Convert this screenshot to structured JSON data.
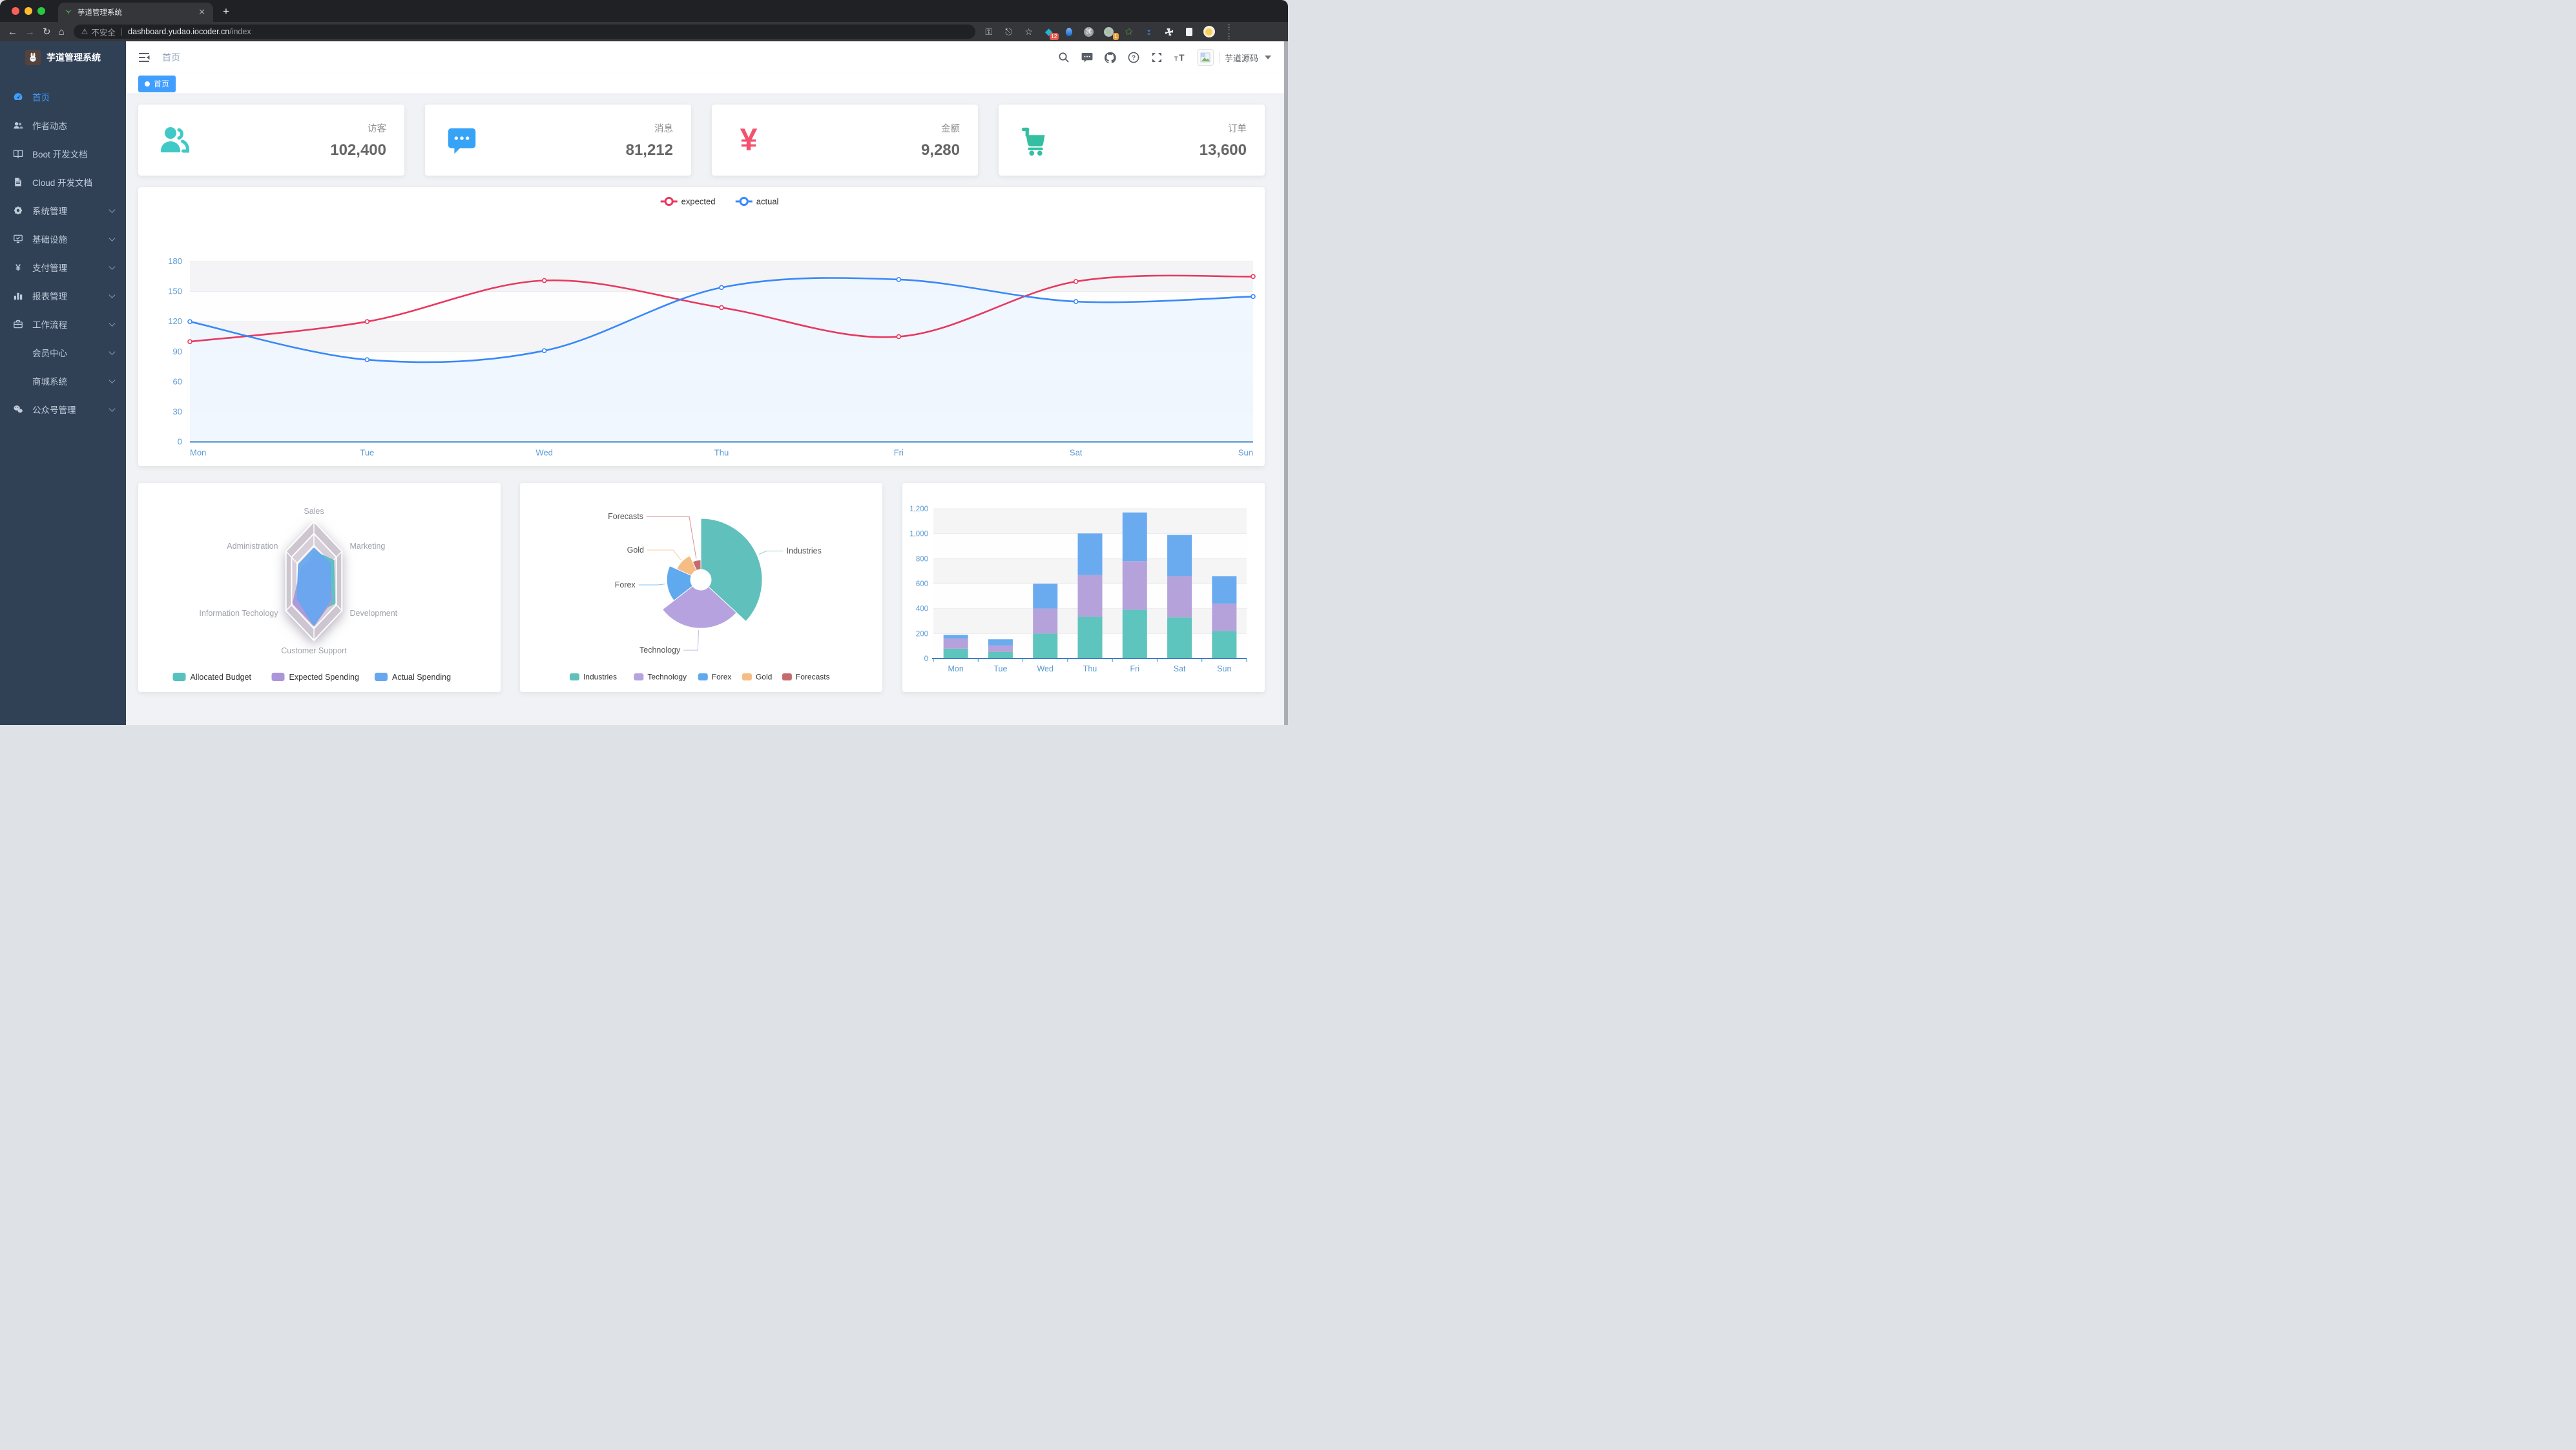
{
  "browser": {
    "tab": {
      "title": "芋道管理系统",
      "close_glyph": "✕",
      "new_tab_glyph": "+"
    },
    "address": {
      "warning_glyph": "⚠",
      "security_label": "不安全",
      "domain": "dashboard.yudao.iocoder.cn",
      "path": "/index"
    },
    "extension_badges": {
      "first": "12",
      "second": "1"
    }
  },
  "sidebar": {
    "logo_title": "芋道管理系统",
    "items": [
      {
        "label": "首页",
        "icon": "dashboard-icon",
        "active": true,
        "children": false,
        "sub": false
      },
      {
        "label": "作者动态",
        "icon": "people-icon",
        "active": false,
        "children": false,
        "sub": false
      },
      {
        "label": "Boot 开发文档",
        "icon": "book-icon",
        "active": false,
        "children": false,
        "sub": false
      },
      {
        "label": "Cloud 开发文档",
        "icon": "document-icon",
        "active": false,
        "children": false,
        "sub": false
      },
      {
        "label": "系统管理",
        "icon": "gear-icon",
        "active": false,
        "children": true,
        "sub": false
      },
      {
        "label": "基础设施",
        "icon": "monitor-icon",
        "active": false,
        "children": true,
        "sub": false
      },
      {
        "label": "支付管理",
        "icon": "yen-icon",
        "active": false,
        "children": true,
        "sub": false
      },
      {
        "label": "报表管理",
        "icon": "barchart-icon",
        "active": false,
        "children": true,
        "sub": false
      },
      {
        "label": "工作流程",
        "icon": "briefcase-icon",
        "active": false,
        "children": true,
        "sub": false
      },
      {
        "label": "会员中心",
        "icon": null,
        "active": false,
        "children": true,
        "sub": true
      },
      {
        "label": "商城系统",
        "icon": null,
        "active": false,
        "children": true,
        "sub": true
      },
      {
        "label": "公众号管理",
        "icon": "wechat-icon",
        "active": false,
        "children": true,
        "sub": false
      }
    ]
  },
  "topbar": {
    "breadcrumb": "首页",
    "username": "芋道源码"
  },
  "tags": [
    {
      "label": "首页",
      "active": true
    }
  ],
  "stat_cards": [
    {
      "label": "访客",
      "value": "102,400",
      "icon": "peoples-icon",
      "color": "#40c9c6"
    },
    {
      "label": "消息",
      "value": "81,212",
      "icon": "message-icon",
      "color": "#36a3f7"
    },
    {
      "label": "金额",
      "value": "9,280",
      "icon": "money-icon",
      "color": "#f4516c"
    },
    {
      "label": "订单",
      "value": "13,600",
      "icon": "cart-icon",
      "color": "#34bfa3"
    }
  ],
  "chart_data": [
    {
      "type": "line",
      "title": "weekly expected vs actual",
      "categories": [
        "Mon",
        "Tue",
        "Wed",
        "Thu",
        "Fri",
        "Sat",
        "Sun"
      ],
      "series": [
        {
          "name": "expected",
          "color": "#e8385f",
          "values": [
            100,
            120,
            161,
            134,
            105,
            160,
            165
          ]
        },
        {
          "name": "actual",
          "color": "#3888fa",
          "area_color": "#f0f6fe",
          "values": [
            120,
            82,
            91,
            154,
            162,
            140,
            145
          ]
        }
      ],
      "ylim": [
        0,
        180
      ],
      "ystep": 30,
      "grid": true,
      "legend_position": "top"
    },
    {
      "type": "radar",
      "indicators": [
        {
          "name": "Sales",
          "max": 10000
        },
        {
          "name": "Marketing",
          "max": 20000
        },
        {
          "name": "Development",
          "max": 20000
        },
        {
          "name": "Customer Support",
          "max": 20000
        },
        {
          "name": "Information Techology",
          "max": 20000
        },
        {
          "name": "Administration",
          "max": 20000
        }
      ],
      "series": [
        {
          "name": "Allocated Budget",
          "color": "#57c1bd",
          "values": [
            5000,
            14000,
            15000,
            11000,
            12000,
            7000
          ]
        },
        {
          "name": "Expected Spending",
          "color": "#ab96d9",
          "values": [
            4000,
            11000,
            13000,
            15000,
            15000,
            9000
          ]
        },
        {
          "name": "Actual Spending",
          "color": "#67a7ef",
          "values": [
            5500,
            12000,
            12000,
            15000,
            12000,
            11000
          ]
        }
      ],
      "legend_position": "bottom"
    },
    {
      "type": "pie",
      "rose": true,
      "items": [
        {
          "name": "Industries",
          "value": 320,
          "color": "#60c0bb"
        },
        {
          "name": "Technology",
          "value": 240,
          "color": "#b6a2de"
        },
        {
          "name": "Forex",
          "value": 149,
          "color": "#5fa9ef"
        },
        {
          "name": "Gold",
          "value": 100,
          "color": "#f5bc83"
        },
        {
          "name": "Forecasts",
          "value": 59,
          "color": "#c56b6e"
        }
      ],
      "legend_position": "bottom"
    },
    {
      "type": "bar",
      "stacked": true,
      "categories": [
        "Mon",
        "Tue",
        "Wed",
        "Thu",
        "Fri",
        "Sat",
        "Sun"
      ],
      "series": [
        {
          "color": "#5ec4be",
          "values": [
            79,
            52,
            200,
            334,
            390,
            330,
            220
          ]
        },
        {
          "color": "#b5a2da",
          "values": [
            80,
            52,
            200,
            334,
            390,
            330,
            220
          ]
        },
        {
          "color": "#6aabf0",
          "values": [
            30,
            50,
            200,
            334,
            390,
            330,
            220
          ]
        }
      ],
      "ylim": [
        0,
        1200
      ],
      "ystep": 200,
      "grid": true
    }
  ]
}
